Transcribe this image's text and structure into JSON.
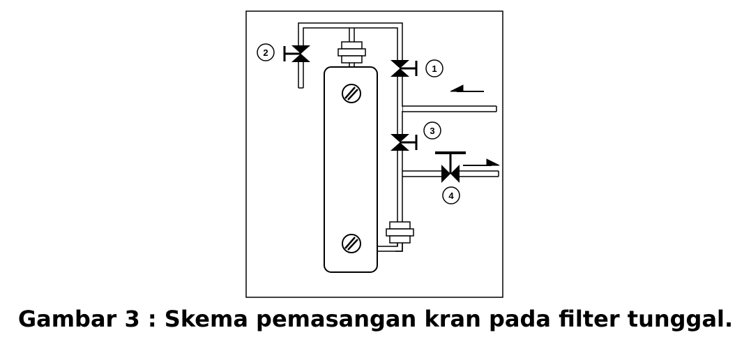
{
  "caption": "Gambar 3 : Skema pemasangan kran pada filter tunggal.",
  "valves": [
    {
      "number": "1"
    },
    {
      "number": "2"
    },
    {
      "number": "3"
    },
    {
      "number": "4"
    }
  ],
  "colors": {
    "line": "#000000",
    "background": "#ffffff"
  }
}
